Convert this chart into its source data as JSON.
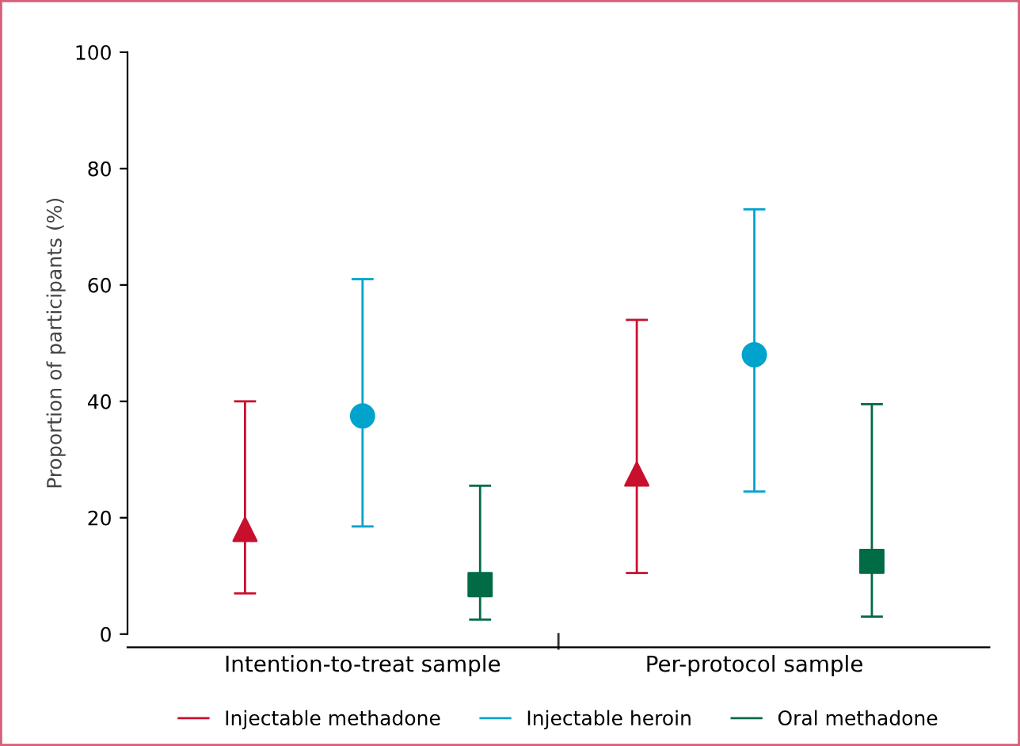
{
  "chart_data": {
    "type": "scatter",
    "ylabel": "Proportion of participants (%)",
    "categories": [
      "Intention-to-treat sample",
      "Per-protocol sample"
    ],
    "series": [
      {
        "name": "Injectable methadone",
        "color": "#c8102e",
        "marker": "triangle",
        "values": [
          18,
          27.5
        ],
        "errors": [
          [
            7,
            40
          ],
          [
            10.5,
            54
          ]
        ]
      },
      {
        "name": "Injectable heroin",
        "color": "#00a3cc",
        "marker": "circle",
        "values": [
          37.5,
          48
        ],
        "errors": [
          [
            18.5,
            61
          ],
          [
            24.5,
            73
          ]
        ]
      },
      {
        "name": "Oral methadone",
        "color": "#006b45",
        "marker": "square",
        "values": [
          8.5,
          12.5
        ],
        "errors": [
          [
            2.5,
            25.5
          ],
          [
            3,
            39.5
          ]
        ]
      }
    ],
    "ylim": [
      0,
      100
    ],
    "yticks": [
      0,
      20,
      40,
      60,
      80,
      100
    ],
    "grid": false,
    "legend": "bottom"
  }
}
